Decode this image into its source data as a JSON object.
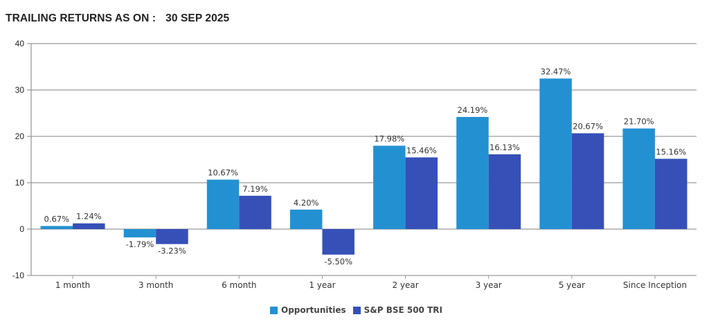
{
  "header": {
    "title": "TRAILING RETURNS AS ON :",
    "date": "30 SEP 2025"
  },
  "chart_data": {
    "type": "bar",
    "title": "TRAILING RETURNS AS ON : 30 SEP 2025",
    "xlabel": "",
    "ylabel": "",
    "ylim": [
      -10,
      40
    ],
    "yticks": [
      -10,
      0,
      10,
      20,
      30,
      40
    ],
    "grid": true,
    "legend_position": "bottom-center",
    "categories": [
      "1 month",
      "3 month",
      "6 month",
      "1 year",
      "2 year",
      "3 year",
      "5 year",
      "Since Inception"
    ],
    "series": [
      {
        "name": "Opportunities",
        "color": "#2391d1",
        "values": [
          0.67,
          -1.79,
          10.67,
          4.2,
          17.98,
          24.19,
          32.47,
          21.7
        ],
        "labels": [
          "0.67%",
          "-1.79%",
          "10.67%",
          "4.20%",
          "17.98%",
          "24.19%",
          "32.47%",
          "21.70%"
        ]
      },
      {
        "name": "S&P BSE 500 TRI",
        "color": "#3650b8",
        "values": [
          1.24,
          -3.23,
          7.19,
          -5.5,
          15.46,
          16.13,
          20.67,
          15.16
        ],
        "labels": [
          "1.24%",
          "-3.23%",
          "7.19%",
          "-5.50%",
          "15.46%",
          "16.13%",
          "20.67%",
          "15.16%"
        ]
      }
    ]
  }
}
